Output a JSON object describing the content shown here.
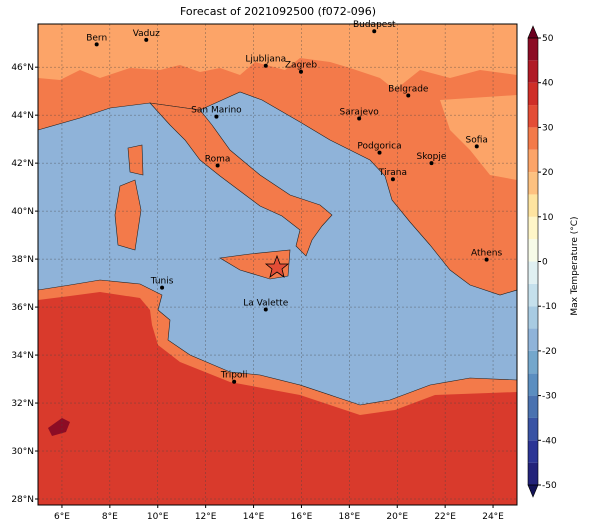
{
  "title": "Forecast of 2021092500 (f072-096)",
  "map": {
    "xlim": [
      5,
      25
    ],
    "ylim": [
      27.75,
      47.8
    ],
    "xticks": [
      {
        "value": 6,
        "label": "6°E"
      },
      {
        "value": 8,
        "label": "8°E"
      },
      {
        "value": 10,
        "label": "10°E"
      },
      {
        "value": 12,
        "label": "12°E"
      },
      {
        "value": 14,
        "label": "14°E"
      },
      {
        "value": 16,
        "label": "16°E"
      },
      {
        "value": 18,
        "label": "18°E"
      },
      {
        "value": 20,
        "label": "20°E"
      },
      {
        "value": 22,
        "label": "22°E"
      },
      {
        "value": 24,
        "label": "24°E"
      }
    ],
    "yticks": [
      {
        "value": 28,
        "label": "28°N"
      },
      {
        "value": 30,
        "label": "30°N"
      },
      {
        "value": 32,
        "label": "32°N"
      },
      {
        "value": 34,
        "label": "34°N"
      },
      {
        "value": 36,
        "label": "36°N"
      },
      {
        "value": 38,
        "label": "38°N"
      },
      {
        "value": 40,
        "label": "40°N"
      },
      {
        "value": 42,
        "label": "42°N"
      },
      {
        "value": 44,
        "label": "44°N"
      },
      {
        "value": 46,
        "label": "46°N"
      }
    ],
    "grid": true,
    "cities": [
      {
        "name": "Bern",
        "lon": 7.45,
        "lat": 46.95
      },
      {
        "name": "Vaduz",
        "lon": 9.52,
        "lat": 47.14
      },
      {
        "name": "Budapest",
        "lon": 19.04,
        "lat": 47.5
      },
      {
        "name": "Ljubljana",
        "lon": 14.51,
        "lat": 46.06
      },
      {
        "name": "Zagreb",
        "lon": 15.98,
        "lat": 45.81
      },
      {
        "name": "Belgrade",
        "lon": 20.46,
        "lat": 44.82
      },
      {
        "name": "San Marino",
        "lon": 12.45,
        "lat": 43.94
      },
      {
        "name": "Sarajevo",
        "lon": 18.41,
        "lat": 43.86
      },
      {
        "name": "Sofia",
        "lon": 23.32,
        "lat": 42.7
      },
      {
        "name": "Podgorica",
        "lon": 19.26,
        "lat": 42.44
      },
      {
        "name": "Skopje",
        "lon": 21.43,
        "lat": 42.0
      },
      {
        "name": "Roma",
        "lon": 12.5,
        "lat": 41.9
      },
      {
        "name": "Tirana",
        "lon": 19.82,
        "lat": 41.33
      },
      {
        "name": "Athens",
        "lon": 23.73,
        "lat": 37.98
      },
      {
        "name": "Tunis",
        "lon": 10.18,
        "lat": 36.81
      },
      {
        "name": "La Valette",
        "lon": 14.51,
        "lat": 35.9
      },
      {
        "name": "Tripoli",
        "lon": 13.19,
        "lat": 32.89
      }
    ]
  },
  "colorbar": {
    "label": "Max Temperature (°C)",
    "lim": [
      -50,
      50
    ],
    "ticks": [
      -50,
      -40,
      -30,
      -20,
      -10,
      0,
      10,
      20,
      30,
      40,
      50
    ],
    "levels": [
      -50,
      -45,
      -40,
      -35,
      -30,
      -25,
      -20,
      -15,
      -10,
      -5,
      0,
      5,
      10,
      15,
      20,
      25,
      30,
      35,
      40,
      45,
      50
    ],
    "colors": [
      "#23237a",
      "#2c3595",
      "#3953a4",
      "#4a72b0",
      "#5b8ec0",
      "#74a7cc",
      "#8fb3d9",
      "#a8cbe2",
      "#c5e0ec",
      "#e0f0f2",
      "#f7fbe8",
      "#fff6c8",
      "#fee4a0",
      "#fdc180",
      "#fca468",
      "#f37a4a",
      "#e34d36",
      "#cf2e28",
      "#b01a26",
      "#8c0c25"
    ],
    "under": "#131356",
    "over": "#6b0020"
  }
}
